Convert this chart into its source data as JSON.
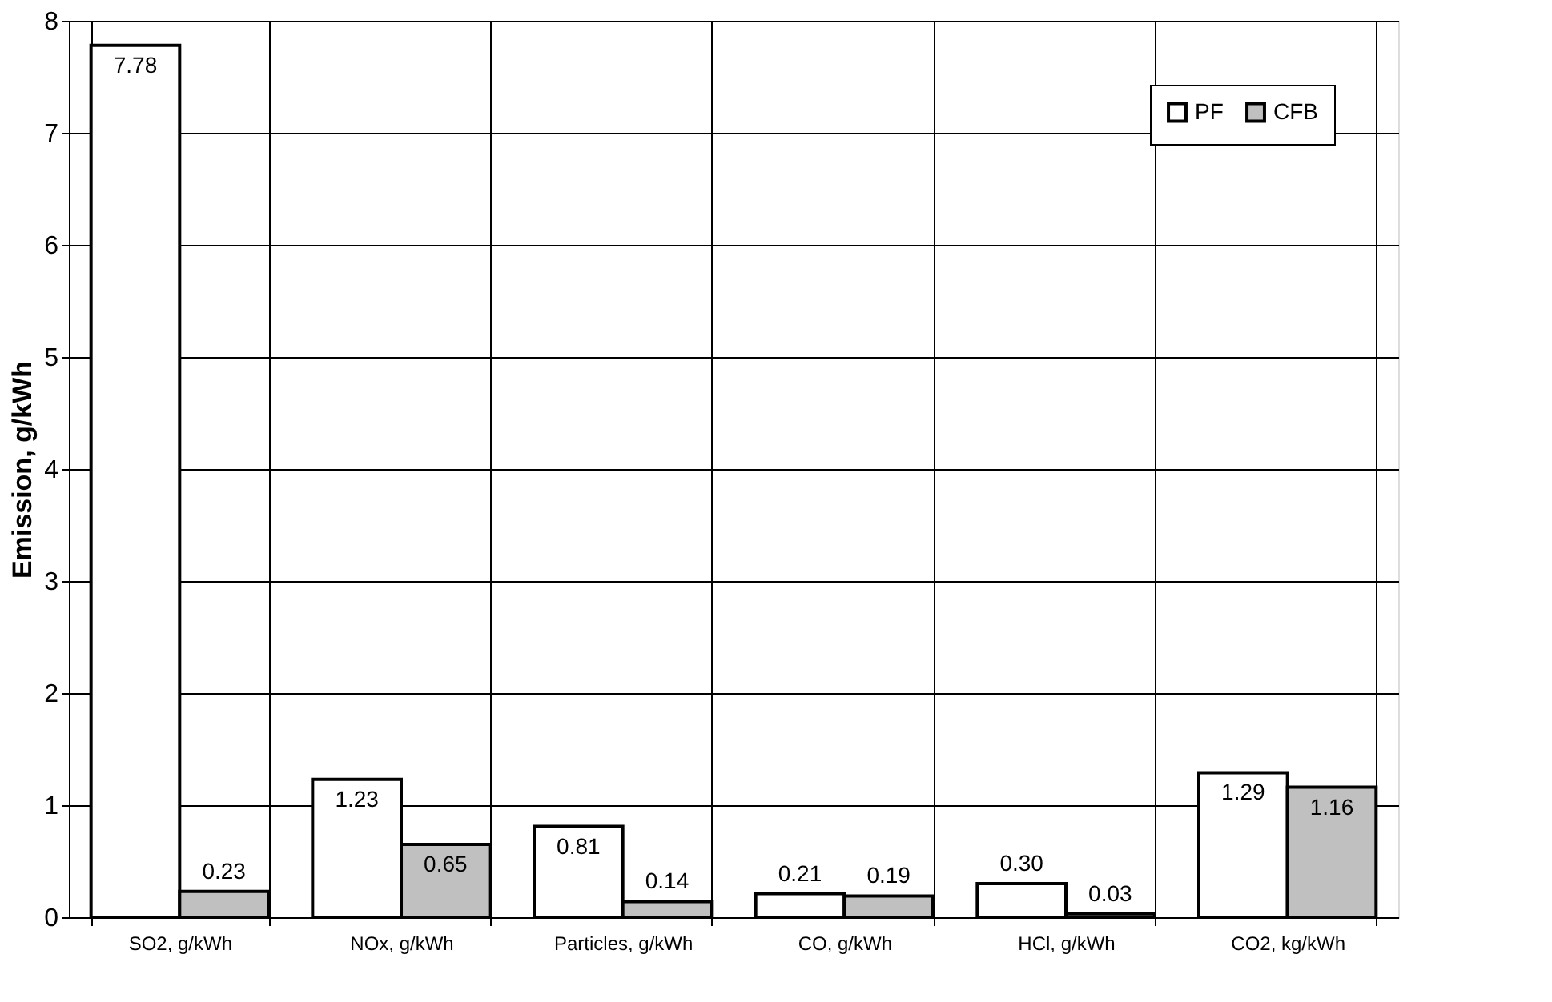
{
  "chart_data": {
    "type": "bar",
    "ylabel": "Emission, g/kWh",
    "categories": [
      "SO2, g/kWh",
      "NOx, g/kWh",
      "Particles, g/kWh",
      "CO, g/kWh",
      "HCl, g/kWh",
      "CO2, kg/kWh"
    ],
    "series": [
      {
        "name": "PF",
        "color": "#ffffff",
        "values": [
          7.78,
          1.23,
          0.81,
          0.21,
          0.3,
          1.29
        ]
      },
      {
        "name": "CFB",
        "color": "#c0c0c0",
        "values": [
          0.23,
          0.65,
          0.14,
          0.19,
          0.03,
          1.16
        ]
      }
    ],
    "value_labels": [
      [
        "7.78",
        "1.23",
        "0.81",
        "0.21",
        "0.30",
        "1.29"
      ],
      [
        "0.23",
        "0.65",
        "0.14",
        "0.19",
        "0.03",
        "1.16"
      ]
    ],
    "ylim": [
      0,
      8
    ],
    "yticks": [
      0,
      1,
      2,
      3,
      4,
      5,
      6,
      7,
      8
    ],
    "grid": true,
    "legend": "top right"
  }
}
